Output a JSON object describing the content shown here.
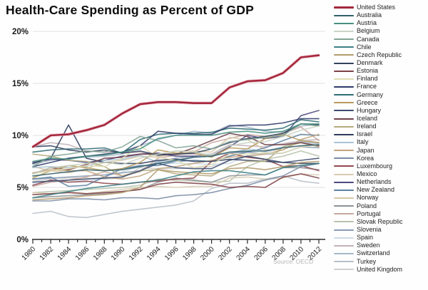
{
  "title": "Health-Care Spending as Percent of GDP",
  "source_label": "Source: OECD",
  "chart_data": {
    "type": "line",
    "title": "Health-Care Spending as Percent of GDP",
    "xlabel": "",
    "ylabel": "",
    "grid": true,
    "legend_position": "right",
    "highlight_series": "United States",
    "xlim": [
      1980,
      2012
    ],
    "ylim": [
      0,
      20
    ],
    "y_tick_values": [
      0,
      5,
      10,
      15,
      20
    ],
    "y_tick_labels": [
      "0%",
      "5%",
      "10%",
      "15%",
      "20%"
    ],
    "x": [
      1980,
      1982,
      1984,
      1986,
      1988,
      1990,
      1992,
      1994,
      1996,
      1998,
      2000,
      2002,
      2004,
      2006,
      2008,
      2010,
      2012
    ],
    "series": [
      {
        "name": "United States",
        "color": "#a5283c",
        "values": [
          8.9,
          10.0,
          10.1,
          10.5,
          11.0,
          12.1,
          13.0,
          13.2,
          13.2,
          13.1,
          13.1,
          14.6,
          15.2,
          15.3,
          16.0,
          17.5,
          17.7
        ]
      },
      {
        "name": "Australia",
        "color": "#31606b",
        "values": [
          6.1,
          6.3,
          6.5,
          6.7,
          6.6,
          6.7,
          7.0,
          7.3,
          7.6,
          7.9,
          8.0,
          8.4,
          8.5,
          8.5,
          8.8,
          9.0,
          9.1
        ]
      },
      {
        "name": "Austria",
        "color": "#44917f",
        "values": [
          7.5,
          7.8,
          7.7,
          8.0,
          8.1,
          8.4,
          8.7,
          9.7,
          10.0,
          10.0,
          10.0,
          10.3,
          10.4,
          10.2,
          10.4,
          11.1,
          11.1
        ]
      },
      {
        "name": "Belgium",
        "color": "#c9d4c5",
        "values": [
          6.3,
          6.9,
          7.1,
          7.3,
          7.4,
          7.2,
          7.8,
          8.2,
          8.5,
          8.4,
          8.1,
          9.0,
          9.3,
          9.4,
          9.9,
          10.5,
          10.9
        ]
      },
      {
        "name": "Canada",
        "color": "#84a596",
        "values": [
          7.0,
          8.0,
          8.2,
          8.5,
          8.4,
          8.9,
          9.9,
          9.5,
          8.8,
          9.0,
          8.7,
          9.4,
          9.6,
          9.8,
          10.0,
          11.1,
          10.9
        ]
      },
      {
        "name": "Chile",
        "color": "#3b7f84",
        "values": [
          4.0,
          4.3,
          4.6,
          4.9,
          5.1,
          5.3,
          5.5,
          5.7,
          6.1,
          6.5,
          6.6,
          6.6,
          6.4,
          6.2,
          6.9,
          7.1,
          7.3
        ]
      },
      {
        "name": "Czech Republic",
        "color": "#b29a6b",
        "values": [
          3.8,
          3.9,
          4.0,
          4.2,
          4.3,
          4.5,
          5.0,
          6.7,
          6.5,
          6.4,
          6.3,
          6.8,
          6.9,
          6.7,
          7.0,
          7.4,
          7.5
        ]
      },
      {
        "name": "Denmark",
        "color": "#31415f",
        "values": [
          8.9,
          9.0,
          8.6,
          8.4,
          8.6,
          8.3,
          8.5,
          8.1,
          8.2,
          8.3,
          8.7,
          9.3,
          9.7,
          9.9,
          10.2,
          11.1,
          11.0
        ]
      },
      {
        "name": "Estonia",
        "color": "#7d4046",
        "values": [
          4.3,
          4.4,
          4.5,
          4.4,
          4.5,
          4.6,
          4.8,
          5.3,
          5.5,
          5.4,
          5.3,
          5.0,
          5.1,
          5.0,
          6.0,
          6.3,
          5.9
        ]
      },
      {
        "name": "Finland",
        "color": "#dfdcb4",
        "values": [
          6.3,
          6.6,
          6.8,
          7.1,
          7.0,
          7.8,
          9.0,
          7.9,
          7.6,
          6.9,
          7.2,
          8.2,
          8.2,
          8.3,
          8.3,
          8.9,
          9.1
        ]
      },
      {
        "name": "France",
        "color": "#2d3a69",
        "values": [
          7.0,
          7.4,
          7.8,
          8.0,
          8.2,
          8.4,
          9.0,
          10.4,
          10.2,
          10.1,
          10.1,
          10.9,
          11.0,
          11.0,
          11.2,
          11.6,
          11.6
        ]
      },
      {
        "name": "Germany",
        "color": "#2f6d74",
        "values": [
          8.4,
          8.6,
          8.7,
          8.7,
          8.8,
          8.3,
          9.6,
          10.1,
          10.2,
          10.2,
          10.3,
          10.7,
          10.6,
          10.5,
          10.7,
          11.5,
          11.3
        ]
      },
      {
        "name": "Greece",
        "color": "#b79a5b",
        "values": [
          5.9,
          6.6,
          7.1,
          6.9,
          6.6,
          6.8,
          7.4,
          8.6,
          8.3,
          8.3,
          7.9,
          8.8,
          8.7,
          9.7,
          10.1,
          9.5,
          9.3
        ]
      },
      {
        "name": "Hungary",
        "color": "#3c4c70",
        "values": [
          5.5,
          5.6,
          5.7,
          5.8,
          5.9,
          6.0,
          6.6,
          7.3,
          6.9,
          6.8,
          6.8,
          7.6,
          8.0,
          7.7,
          7.4,
          7.6,
          7.8
        ]
      },
      {
        "name": "Iceland",
        "color": "#6f4049",
        "values": [
          6.3,
          6.9,
          6.7,
          7.2,
          7.8,
          7.9,
          8.2,
          8.2,
          8.2,
          8.8,
          9.5,
          10.2,
          9.9,
          9.1,
          9.1,
          9.3,
          9.0
        ]
      },
      {
        "name": "Ireland",
        "color": "#b3ab7e",
        "values": [
          8.2,
          8.0,
          7.6,
          7.5,
          7.0,
          6.1,
          6.6,
          6.7,
          6.3,
          6.2,
          6.1,
          7.0,
          7.5,
          7.5,
          8.9,
          9.3,
          8.9
        ]
      },
      {
        "name": "Israel",
        "color": "#2e3d5c",
        "values": [
          7.3,
          7.8,
          11.0,
          7.8,
          7.4,
          7.3,
          7.3,
          7.6,
          7.7,
          7.5,
          7.5,
          7.7,
          7.6,
          7.5,
          7.4,
          7.3,
          7.3
        ]
      },
      {
        "name": "Italy",
        "color": "#a9c3d6",
        "values": [
          6.9,
          7.0,
          6.9,
          7.0,
          7.6,
          7.7,
          8.1,
          7.4,
          7.5,
          7.9,
          8.1,
          8.3,
          8.7,
          8.5,
          8.9,
          9.4,
          9.2
        ]
      },
      {
        "name": "Japan",
        "color": "#c2a57f",
        "values": [
          6.4,
          6.7,
          6.6,
          6.6,
          6.0,
          5.8,
          6.1,
          6.8,
          7.0,
          7.3,
          7.6,
          7.9,
          8.0,
          8.2,
          8.6,
          9.6,
          10.1
        ]
      },
      {
        "name": "Korea",
        "color": "#7b8da5",
        "values": [
          3.7,
          3.7,
          3.9,
          3.9,
          3.8,
          4.0,
          4.0,
          3.9,
          4.2,
          4.3,
          4.5,
          4.9,
          5.2,
          5.7,
          6.1,
          7.0,
          7.3
        ]
      },
      {
        "name": "Luxembourg",
        "color": "#8f4a50",
        "values": [
          5.2,
          5.7,
          5.5,
          5.6,
          5.4,
          5.3,
          5.5,
          5.6,
          5.8,
          5.9,
          7.5,
          8.3,
          7.9,
          7.7,
          7.0,
          7.1,
          6.6
        ]
      },
      {
        "name": "Mexico",
        "color": "#d8ccb0",
        "values": [
          4.5,
          4.4,
          4.6,
          4.4,
          4.6,
          4.8,
          5.0,
          5.1,
          5.0,
          5.1,
          5.1,
          5.9,
          6.0,
          5.8,
          5.9,
          6.3,
          6.2
        ]
      },
      {
        "name": "Netherlands",
        "color": "#4c4a80",
        "values": [
          7.4,
          7.7,
          7.6,
          7.4,
          7.6,
          8.0,
          8.2,
          8.3,
          8.0,
          8.0,
          8.0,
          8.9,
          10.0,
          9.7,
          9.9,
          11.9,
          12.4
        ]
      },
      {
        "name": "New Zealand",
        "color": "#5c80a1",
        "values": [
          5.8,
          6.0,
          5.1,
          5.2,
          6.0,
          6.8,
          7.1,
          7.1,
          7.5,
          7.6,
          7.5,
          8.0,
          8.4,
          8.8,
          9.5,
          10.1,
          10.0
        ]
      },
      {
        "name": "Norway",
        "color": "#d6c7a6",
        "values": [
          7.0,
          6.6,
          6.4,
          6.8,
          7.4,
          7.6,
          8.0,
          7.9,
          8.5,
          8.5,
          8.4,
          9.8,
          9.6,
          8.6,
          8.6,
          9.4,
          9.3
        ]
      },
      {
        "name": "Poland",
        "color": "#8d9296",
        "values": [
          4.0,
          4.1,
          4.2,
          4.3,
          4.4,
          4.6,
          4.8,
          5.5,
          5.9,
          5.7,
          5.5,
          6.1,
          6.2,
          6.2,
          6.9,
          6.9,
          6.7
        ]
      },
      {
        "name": "Portugal",
        "color": "#c7a89e",
        "values": [
          5.1,
          5.5,
          5.7,
          6.0,
          6.5,
          6.1,
          6.5,
          7.8,
          8.1,
          8.4,
          9.3,
          9.7,
          10.1,
          9.9,
          10.2,
          10.8,
          9.5
        ]
      },
      {
        "name": "Slovak Republic",
        "color": "#b7c3ac",
        "values": [
          4.5,
          4.6,
          4.7,
          4.8,
          4.9,
          5.0,
          5.2,
          5.8,
          5.7,
          5.6,
          5.5,
          5.6,
          7.0,
          7.7,
          8.0,
          8.5,
          8.0
        ]
      },
      {
        "name": "Slovenia",
        "color": "#8a9cb2",
        "values": [
          5.8,
          5.9,
          6.0,
          6.1,
          6.2,
          6.4,
          6.6,
          7.5,
          7.8,
          8.0,
          8.1,
          8.3,
          8.4,
          8.2,
          8.3,
          8.9,
          8.8
        ]
      },
      {
        "name": "Spain",
        "color": "#ccdbe6",
        "values": [
          5.3,
          5.6,
          5.5,
          5.5,
          6.0,
          6.5,
          7.0,
          7.4,
          7.3,
          7.3,
          7.2,
          7.3,
          8.0,
          8.3,
          8.9,
          9.6,
          9.3
        ]
      },
      {
        "name": "Sweden",
        "color": "#c3b3b8",
        "values": [
          8.9,
          9.3,
          9.1,
          8.5,
          8.4,
          8.3,
          8.4,
          8.0,
          8.2,
          8.2,
          8.2,
          9.1,
          9.0,
          8.9,
          9.2,
          9.5,
          9.6
        ]
      },
      {
        "name": "Switzerland",
        "color": "#a7b8ca",
        "values": [
          7.2,
          7.6,
          7.8,
          7.9,
          8.0,
          8.2,
          9.0,
          9.6,
          10.0,
          10.4,
          10.2,
          11.0,
          10.8,
          10.4,
          10.3,
          10.9,
          11.1
        ]
      },
      {
        "name": "Turkey",
        "color": "#b8bfc8",
        "values": [
          2.5,
          2.7,
          2.2,
          2.1,
          2.4,
          2.7,
          2.9,
          3.1,
          3.3,
          3.7,
          4.9,
          5.4,
          5.4,
          5.8,
          6.1,
          5.6,
          5.4
        ]
      },
      {
        "name": "United Kingdom",
        "color": "#cfcfcf",
        "values": [
          5.6,
          5.8,
          5.9,
          5.9,
          5.8,
          5.9,
          6.9,
          6.8,
          6.8,
          6.9,
          7.0,
          7.6,
          8.0,
          8.4,
          8.9,
          9.4,
          9.3
        ]
      }
    ]
  }
}
